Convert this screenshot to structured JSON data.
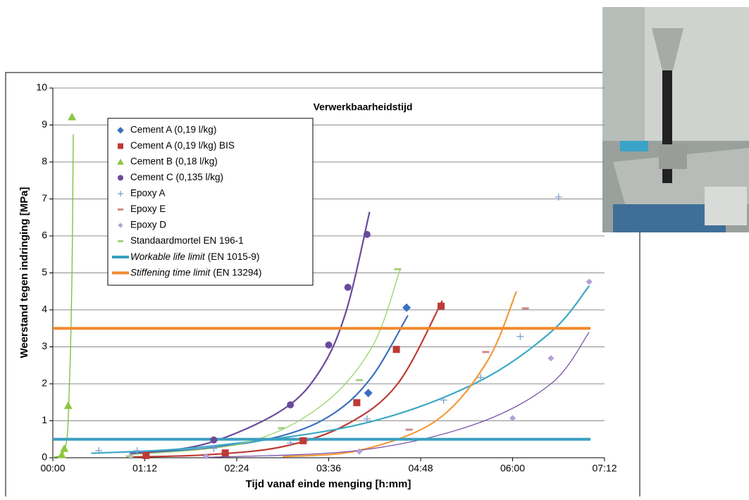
{
  "chart_data": {
    "type": "scatter",
    "title": "Verwerkbaarheidstijd",
    "x_label": "Tijd vanaf einde menging [h:mm]",
    "y_label": "Weerstand tegen indringing [MPa]",
    "xlim": [
      0,
      432
    ],
    "ylim": [
      0,
      10
    ],
    "xticks": [
      {
        "value": 0,
        "label": "00:00"
      },
      {
        "value": 72,
        "label": "01:12"
      },
      {
        "value": 144,
        "label": "02:24"
      },
      {
        "value": 216,
        "label": "03:36"
      },
      {
        "value": 288,
        "label": "04:48"
      },
      {
        "value": 360,
        "label": "06:00"
      },
      {
        "value": 432,
        "label": "07:12"
      }
    ],
    "yticks": [
      0,
      1,
      2,
      3,
      4,
      5,
      6,
      7,
      8,
      9,
      10
    ],
    "grid": true,
    "legend": "top-left",
    "series": [
      {
        "name": "Cement A (0,19 l/kg)",
        "marker": "diamond",
        "color": "#3a6fc0",
        "trend_color": "#3a6fc0",
        "x": [
          247,
          277
        ],
        "values": [
          1.75,
          4.06
        ],
        "trend": {
          "x": [
            60,
            120,
            180,
            220,
            250,
            278
          ],
          "values": [
            0.12,
            0.25,
            0.6,
            1.2,
            2.2,
            3.85
          ]
        }
      },
      {
        "name": "Cement A (0,19 l/kg) BIS",
        "marker": "square",
        "color": "#be3a34",
        "trend_color": "#be3a34",
        "x": [
          73,
          135,
          196,
          238,
          269,
          304
        ],
        "values": [
          0.06,
          0.13,
          0.46,
          1.49,
          2.93,
          4.1
        ],
        "trend": {
          "x": [
            60,
            120,
            180,
            230,
            270,
            305
          ],
          "values": [
            0.02,
            0.08,
            0.3,
            0.9,
            2.0,
            4.25
          ]
        }
      },
      {
        "name": "Cement B (0,18 l/kg)",
        "marker": "triangle",
        "color": "#8cc63f",
        "trend_color": "#7dbb3a",
        "x": [
          7,
          9,
          12,
          15
        ],
        "values": [
          0.08,
          0.25,
          1.41,
          9.22
        ],
        "trend": {
          "x": [
            0,
            10,
            13,
            15,
            16
          ],
          "values": [
            0,
            0.3,
            2,
            5,
            8.75
          ]
        }
      },
      {
        "name": "Cement C (0,135 l/kg)",
        "marker": "circle",
        "color": "#6a4a9c",
        "trend_color": "#6a4a9c",
        "x": [
          126,
          186,
          216,
          231,
          246
        ],
        "values": [
          0.48,
          1.43,
          3.05,
          4.61,
          6.04
        ],
        "trend": {
          "x": [
            60,
            120,
            180,
            210,
            230,
            248
          ],
          "values": [
            0.1,
            0.38,
            1.3,
            2.4,
            4.0,
            6.65
          ]
        }
      },
      {
        "name": "Epoxy A",
        "marker": "plus",
        "color": "#7f9fd0",
        "trend_color": "#3aa9c4",
        "x": [
          36,
          66,
          126,
          186,
          246,
          306,
          335,
          366,
          396
        ],
        "values": [
          0.19,
          0.19,
          0.25,
          0.4,
          1.05,
          1.56,
          2.17,
          3.28,
          7.05
        ],
        "trend": {
          "x": [
            30,
            120,
            240,
            330,
            390,
            420
          ],
          "values": [
            0.12,
            0.3,
            0.9,
            2.0,
            3.4,
            4.65
          ]
        }
      },
      {
        "name": "Epoxy E",
        "marker": "dash",
        "color": "#d08a8a",
        "trend_color": "#f39a3a",
        "x": [
          279,
          339,
          370
        ],
        "values": [
          0.76,
          2.86,
          4.04
        ],
        "trend": {
          "x": [
            180,
            240,
            300,
            340,
            363
          ],
          "values": [
            0.03,
            0.2,
            1.0,
            2.6,
            4.5
          ]
        }
      },
      {
        "name": "Epoxy D",
        "marker": "diamond-small",
        "color": "#b4a0d8",
        "trend_color": "#7a55a8",
        "x": [
          61,
          120,
          240,
          360,
          390,
          420
        ],
        "values": [
          0.04,
          0.04,
          0.17,
          1.07,
          2.69,
          4.76
        ],
        "trend": {
          "x": [
            120,
            240,
            330,
            390,
            420
          ],
          "values": [
            0.01,
            0.2,
            0.9,
            2.0,
            3.4
          ]
        }
      },
      {
        "name": "Standaardmortel EN 196-1",
        "marker": "dash",
        "color": "#a8d080",
        "trend_color": "#9bd36a",
        "x": [
          60,
          179,
          240,
          270
        ],
        "values": [
          0.04,
          0.8,
          2.1,
          5.1
        ],
        "trend": {
          "x": [
            60,
            150,
            210,
            250,
            272
          ],
          "values": [
            0.08,
            0.4,
            1.4,
            3.0,
            5.1
          ]
        }
      },
      {
        "name": [
          "Workable life limit",
          "(EN 1015-9)"
        ],
        "marker": "line",
        "color": "#3aa0c0",
        "x": [
          0,
          421
        ],
        "values": [
          0.5,
          0.5
        ]
      },
      {
        "name": [
          "Stiffening time limit",
          "(EN 13294)"
        ],
        "marker": "line",
        "color": "#f08a30",
        "x": [
          0,
          421
        ],
        "values": [
          3.5,
          3.5
        ]
      }
    ]
  }
}
